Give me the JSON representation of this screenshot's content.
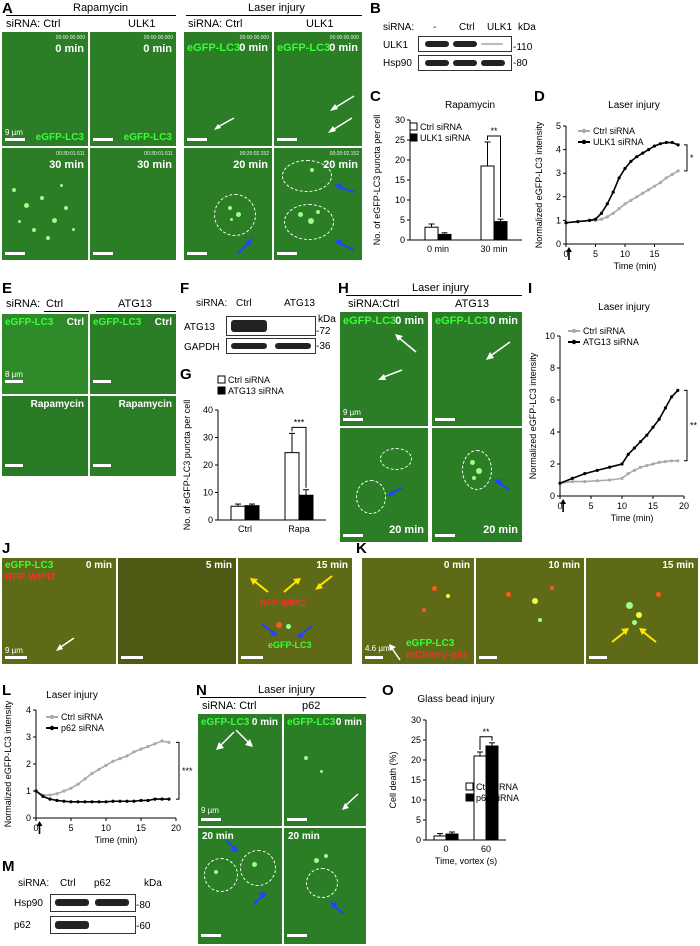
{
  "panels": {
    "A": "A",
    "B": "B",
    "C": "C",
    "D": "D",
    "E": "E",
    "F": "F",
    "G": "G",
    "H": "H",
    "I": "I",
    "J": "J",
    "K": "K",
    "L": "L",
    "M": "M",
    "N": "N",
    "O": "O"
  },
  "common": {
    "sirna_ctrl": "siRNA: Ctrl",
    "sirna_colon": "siRNA:",
    "sirna_ctrl_tight": "siRNA:Ctrl",
    "ctrl": "Ctrl",
    "egfp_lc3": "eGFP-LC3",
    "t0": "0 min",
    "t5": "5 min",
    "t10": "10 min",
    "t15": "15 min",
    "t20": "20 min",
    "t30": "30 min",
    "scale_9um": "9 µm",
    "scale_8um": "8 µm",
    "scale_46um": "4.6 µm",
    "kda": "kDa",
    "laser_injury": "Laser injury",
    "rapamycin": "Rapamycin",
    "ctrl_sirna": "Ctrl siRNA",
    "norm_ylabel": "Normalized eGFP-LC3 intensity",
    "time_min": "Time (min)"
  },
  "A": {
    "rapamycin": "Rapamycin",
    "laser": "Laser injury",
    "ulk1": "ULK1",
    "timestamp": "00:00:00.000",
    "timestamp30": "00:30:01.511",
    "timestamp20": "00:20:02.152"
  },
  "B": {
    "sirna": "siRNA:",
    "minus": "-",
    "ctrl": "Ctrl",
    "ulk1": "ULK1",
    "row1": "ULK1",
    "row2": "Hsp90",
    "m1": "110",
    "m2": "80"
  },
  "E": {
    "ctrl_label": "Ctrl",
    "atg13": "ATG13",
    "rapa": "Rapamycin"
  },
  "F": {
    "ctrl": "Ctrl",
    "atg13": "ATG13",
    "row1": "ATG13",
    "row2": "GAPDH",
    "m1": "72",
    "m2": "36"
  },
  "H": {
    "atg13": "ATG13"
  },
  "J": {
    "rfp_wipi2": "RFP-WIPI2"
  },
  "K": {
    "mcherry_p62": "mCherry-p62"
  },
  "M": {
    "ctrl": "Ctrl",
    "p62": "p62",
    "row1": "Hsp90",
    "row2": "p62",
    "m1": "80",
    "m2": "60"
  },
  "N": {
    "p62": "p62"
  },
  "chart_data": [
    {
      "id": "C",
      "type": "bar",
      "title": "Rapamycin",
      "ylabel": "No. of eGFP-LC3 puncta per cell",
      "ylim": [
        0,
        30
      ],
      "yticks": [
        "0",
        "5",
        "10",
        "15",
        "20",
        "25",
        "30"
      ],
      "categories": [
        "0 min",
        "30 min"
      ],
      "series": [
        {
          "name": "Ctrl siRNA",
          "values": [
            3.2,
            18.5
          ],
          "errors": [
            0.8,
            6.0
          ],
          "color": "#ffffff"
        },
        {
          "name": "ULK1 siRNA",
          "values": [
            1.4,
            4.6
          ],
          "errors": [
            0.4,
            0.6
          ],
          "color": "#000000"
        }
      ],
      "significance": "**"
    },
    {
      "id": "D",
      "type": "line",
      "title": "Laser injury",
      "ylabel": "Normalized eGFP-LC3 intensity",
      "xlabel": "Time (min)",
      "xlim": [
        0,
        20
      ],
      "ylim": [
        0,
        5
      ],
      "xticks": [
        "0",
        "5",
        "10",
        "15"
      ],
      "yticks": [
        "0",
        "1",
        "2",
        "3",
        "4",
        "5"
      ],
      "series": [
        {
          "name": "Ctrl siRNA",
          "color": "#aaaaaa",
          "x": [
            0,
            2,
            4,
            5,
            6,
            7,
            8,
            9,
            10,
            11,
            12,
            13,
            14,
            15,
            16,
            17,
            18,
            19
          ],
          "y": [
            0.9,
            0.95,
            1.0,
            1.0,
            1.05,
            1.15,
            1.3,
            1.5,
            1.7,
            1.85,
            2.0,
            2.15,
            2.3,
            2.45,
            2.6,
            2.8,
            2.95,
            3.1
          ]
        },
        {
          "name": "ULK1 siRNA",
          "color": "#000000",
          "x": [
            0,
            2,
            4,
            5,
            6,
            7,
            8,
            9,
            10,
            11,
            12,
            13,
            14,
            15,
            16,
            17,
            18,
            19
          ],
          "y": [
            0.9,
            0.95,
            1.0,
            1.05,
            1.3,
            1.7,
            2.2,
            2.8,
            3.2,
            3.5,
            3.7,
            3.85,
            4.0,
            4.15,
            4.25,
            4.3,
            4.3,
            4.2
          ]
        }
      ],
      "significance": "*"
    },
    {
      "id": "G",
      "type": "bar",
      "ylabel": "No. of eGFP-LC3 puncta per cell",
      "ylim": [
        0,
        40
      ],
      "yticks": [
        "0",
        "10",
        "20",
        "30",
        "40"
      ],
      "categories": [
        "Ctrl",
        "Rapa"
      ],
      "series": [
        {
          "name": "Ctrl siRNA",
          "values": [
            5.0,
            24.5
          ],
          "errors": [
            0.8,
            7.0
          ],
          "color": "#ffffff"
        },
        {
          "name": "ATG13 siRNA",
          "values": [
            5.2,
            9.0
          ],
          "errors": [
            0.6,
            2.0
          ],
          "color": "#000000"
        }
      ],
      "significance": "***"
    },
    {
      "id": "I",
      "type": "line",
      "title": "Laser injury",
      "ylabel": "Normalized eGFP-LC3 intensity",
      "xlabel": "Time (min)",
      "xlim": [
        0,
        20
      ],
      "ylim": [
        0,
        10
      ],
      "xticks": [
        "0",
        "5",
        "10",
        "15",
        "20"
      ],
      "yticks": [
        "0",
        "2",
        "4",
        "6",
        "8",
        "10"
      ],
      "series": [
        {
          "name": "Ctrl siRNA",
          "color": "#aaaaaa",
          "x": [
            0,
            2,
            4,
            6,
            8,
            10,
            11,
            12,
            13,
            14,
            15,
            16,
            17,
            18,
            19
          ],
          "y": [
            0.8,
            0.9,
            0.9,
            0.95,
            1.0,
            1.1,
            1.4,
            1.6,
            1.8,
            1.9,
            2.0,
            2.1,
            2.15,
            2.2,
            2.2
          ]
        },
        {
          "name": "ATG13 siRNA",
          "color": "#000000",
          "x": [
            0,
            2,
            4,
            6,
            8,
            10,
            11,
            12,
            13,
            14,
            15,
            16,
            17,
            18,
            19
          ],
          "y": [
            0.8,
            1.1,
            1.4,
            1.6,
            1.8,
            2.0,
            2.6,
            3.0,
            3.4,
            3.8,
            4.3,
            4.8,
            5.5,
            6.2,
            6.6
          ]
        }
      ],
      "significance": "**"
    },
    {
      "id": "L",
      "type": "line",
      "title": "Laser injury",
      "ylabel": "Normalized eGFP-LC3 intensity",
      "xlabel": "Time (min)",
      "xlim": [
        0,
        20
      ],
      "ylim": [
        0,
        4
      ],
      "xticks": [
        "0",
        "5",
        "10",
        "15",
        "20"
      ],
      "yticks": [
        "0",
        "1",
        "2",
        "3",
        "4"
      ],
      "series": [
        {
          "name": "Ctrl siRNA",
          "color": "#aaaaaa",
          "x": [
            0,
            1,
            2,
            3,
            4,
            5,
            6,
            7,
            8,
            9,
            10,
            11,
            12,
            13,
            14,
            15,
            16,
            17,
            18,
            19
          ],
          "y": [
            1.0,
            0.85,
            0.85,
            0.9,
            1.0,
            1.1,
            1.25,
            1.45,
            1.65,
            1.8,
            1.95,
            2.1,
            2.2,
            2.3,
            2.45,
            2.55,
            2.65,
            2.75,
            2.85,
            2.8
          ]
        },
        {
          "name": "p62 siRNA",
          "color": "#000000",
          "x": [
            0,
            1,
            2,
            3,
            4,
            5,
            6,
            7,
            8,
            9,
            10,
            11,
            12,
            13,
            14,
            15,
            16,
            17,
            18,
            19
          ],
          "y": [
            1.0,
            0.8,
            0.7,
            0.65,
            0.62,
            0.6,
            0.6,
            0.6,
            0.6,
            0.6,
            0.6,
            0.62,
            0.62,
            0.62,
            0.62,
            0.65,
            0.65,
            0.7,
            0.7,
            0.7
          ]
        }
      ],
      "significance": "***"
    },
    {
      "id": "O",
      "type": "bar",
      "title": "Glass bead injury",
      "ylabel": "Cell death (%)",
      "xlabel": "Time, vortex (s)",
      "ylim": [
        0,
        30
      ],
      "yticks": [
        "0",
        "5",
        "10",
        "15",
        "20",
        "25",
        "30"
      ],
      "categories": [
        "0",
        "60"
      ],
      "series": [
        {
          "name": "Ctrl siRNA",
          "values": [
            1.0,
            21.0
          ],
          "errors": [
            0.6,
            1.0
          ],
          "color": "#ffffff"
        },
        {
          "name": "p62 siRNA",
          "values": [
            1.5,
            23.5
          ],
          "errors": [
            0.5,
            0.8
          ],
          "color": "#000000"
        }
      ],
      "significance": "**"
    }
  ]
}
